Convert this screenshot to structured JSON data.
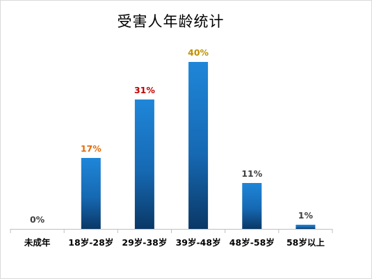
{
  "chart_data": {
    "type": "bar",
    "title": "受害人年龄统计",
    "categories": [
      "未成年",
      "18岁-28岁",
      "29岁-38岁",
      "39岁-48岁",
      "48岁-58岁",
      "58岁以上"
    ],
    "values": [
      0,
      17,
      31,
      40,
      11,
      1
    ],
    "data_labels": [
      "0%",
      "17%",
      "31%",
      "40%",
      "11%",
      "1%"
    ],
    "label_colors": [
      "#404040",
      "#e46c0a",
      "#c00000",
      "#c09000",
      "#404040",
      "#404040"
    ],
    "bar_color_top": "#1f86d8",
    "bar_color_bottom": "#0a3866",
    "ylim": [
      0,
      40
    ],
    "grid": false,
    "legend": false
  }
}
